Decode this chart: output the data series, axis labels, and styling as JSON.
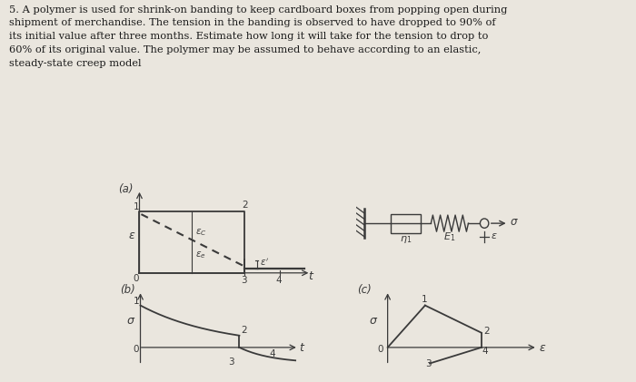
{
  "bg_color": "#eae6de",
  "text_color": "#1a1a1a",
  "title_text": "5. A polymer is used for shrink-on banding to keep cardboard boxes from popping open during\nshipment of merchandise. The tension in the banding is observed to have dropped to 90% of\nits initial value after three months. Estimate how long it will take for the tension to drop to\n60% of its original value. The polymer may be assumed to behave according to an elastic,\nsteady-state creep model",
  "label_a": "(a)",
  "label_b": "(b)",
  "label_c": "(c)",
  "fig_width": 7.0,
  "fig_height": 4.21,
  "line_color": "#3a3a3a"
}
